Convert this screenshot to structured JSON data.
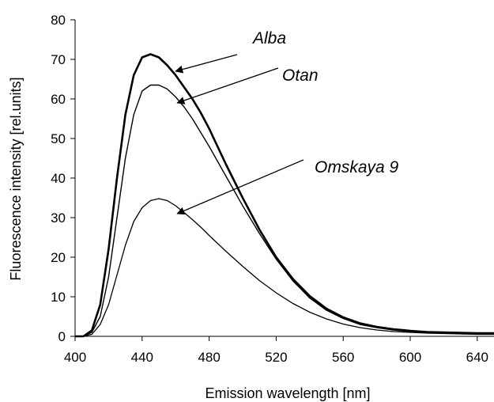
{
  "chart_data": {
    "type": "line",
    "title": "",
    "xlabel": "Emission wavelength [nm]",
    "ylabel": "Fluorescence intensity [rel.units]",
    "xlim": [
      400,
      650
    ],
    "ylim": [
      0,
      80
    ],
    "xticks": [
      400,
      440,
      480,
      520,
      560,
      600,
      640
    ],
    "yticks": [
      0,
      10,
      20,
      30,
      40,
      50,
      60,
      70,
      80
    ],
    "grid": false,
    "legend": "none",
    "series": [
      {
        "name": "Alba",
        "color": "#000000",
        "x": [
          400,
          405,
          410,
          415,
          420,
          425,
          430,
          435,
          440,
          445,
          450,
          455,
          460,
          465,
          470,
          475,
          480,
          490,
          500,
          510,
          520,
          530,
          540,
          550,
          560,
          570,
          580,
          590,
          600,
          610,
          620,
          630,
          640,
          650
        ],
        "y": [
          0,
          0,
          1.5,
          8,
          22,
          40,
          56,
          66,
          70.5,
          71.3,
          70.5,
          68.5,
          66,
          63,
          60,
          56.5,
          52.5,
          43.5,
          35,
          27,
          20,
          14.5,
          10.2,
          7,
          4.8,
          3.3,
          2.4,
          1.8,
          1.4,
          1.1,
          1,
          0.9,
          0.8,
          0.8
        ]
      },
      {
        "name": "Otan",
        "color": "#000000",
        "x": [
          400,
          405,
          410,
          415,
          420,
          425,
          430,
          435,
          440,
          445,
          450,
          455,
          460,
          465,
          470,
          475,
          480,
          490,
          500,
          510,
          520,
          530,
          540,
          550,
          560,
          570,
          580,
          590,
          600,
          610,
          620,
          630,
          640,
          650
        ],
        "y": [
          0,
          0,
          1,
          5,
          15,
          30,
          45,
          56,
          62,
          63.5,
          63.5,
          62.5,
          60.5,
          58,
          55,
          51.5,
          48,
          40.5,
          33,
          26,
          19.5,
          14,
          9.7,
          6.6,
          4.5,
          3,
          2.2,
          1.6,
          1.2,
          1,
          0.8,
          0.7,
          0.6,
          0.6
        ]
      },
      {
        "name": "Omskaya 9",
        "color": "#000000",
        "x": [
          400,
          405,
          410,
          415,
          420,
          425,
          430,
          435,
          440,
          445,
          450,
          455,
          460,
          465,
          470,
          475,
          480,
          490,
          500,
          510,
          520,
          530,
          540,
          550,
          560,
          570,
          580,
          590,
          600,
          610,
          620,
          630,
          640,
          650
        ],
        "y": [
          0,
          0,
          0.5,
          3,
          8,
          15.5,
          23,
          29,
          32.5,
          34.3,
          34.8,
          34.3,
          33,
          31.3,
          29.5,
          27.6,
          25.5,
          21.5,
          17.7,
          14.1,
          11,
          8.3,
          6.1,
          4.4,
          3.1,
          2.2,
          1.6,
          1.2,
          1,
          0.8,
          0.7,
          0.6,
          0.5,
          0.5
        ]
      }
    ],
    "annotations": [
      {
        "text": "Alba",
        "target": [
          460,
          67
        ]
      },
      {
        "text": "Otan",
        "target": [
          461,
          59
        ]
      },
      {
        "text": "Omskaya 9",
        "target": [
          461,
          31
        ]
      }
    ]
  }
}
